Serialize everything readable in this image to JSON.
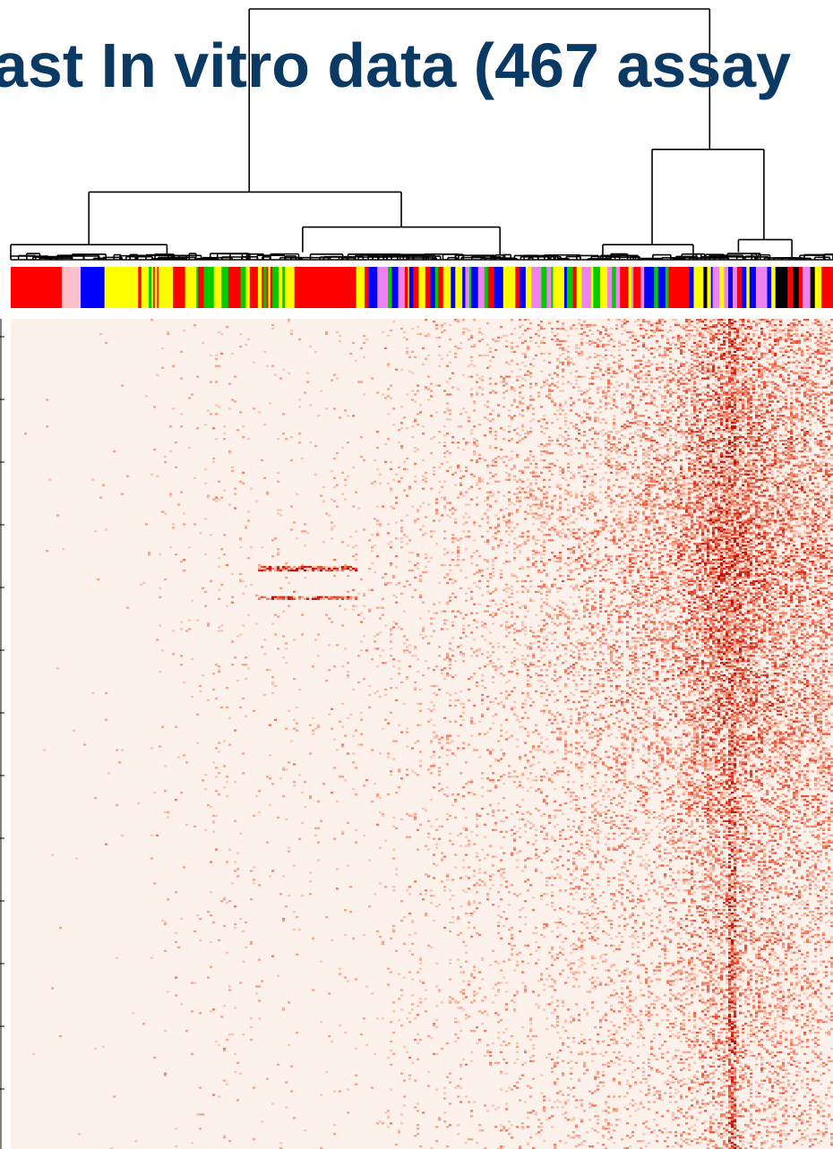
{
  "chart_data": {
    "type": "heatmap",
    "title": "ast In vitro data (467 assay",
    "xlabel": "",
    "ylabel": "",
    "colors": {
      "title": "#0a3a63",
      "dendrogram": "#000000",
      "heat_low": "#fdf1ec",
      "heat_high": "#c41a12",
      "background": "#ffffff"
    },
    "color_bar": {
      "palette": [
        "#ff0000",
        "#ffc0cb",
        "#0000ff",
        "#ffff00",
        "#00cc00",
        "#ee82ee",
        "#000000",
        "#a0522d"
      ],
      "segments": [
        {
          "from": 0.0,
          "to": 0.062,
          "color": 0
        },
        {
          "from": 0.062,
          "to": 0.085,
          "color": 1
        },
        {
          "from": 0.085,
          "to": 0.114,
          "color": 2
        },
        {
          "from": 0.114,
          "to": 0.155,
          "color": 3
        },
        {
          "from": 0.155,
          "to": 0.345,
          "color": "mix:0,3,4"
        },
        {
          "from": 0.345,
          "to": 0.42,
          "color": 0
        },
        {
          "from": 0.42,
          "to": 0.8,
          "color": "mix:0,3,4,5,2"
        },
        {
          "from": 0.8,
          "to": 0.825,
          "color": 0
        },
        {
          "from": 0.825,
          "to": 0.878,
          "color": "mix:5,2,6,3"
        },
        {
          "from": 0.878,
          "to": 0.93,
          "color": "mix:0,3,2,5"
        },
        {
          "from": 0.93,
          "to": 1.0,
          "color": "mix:3,5,0,6"
        }
      ]
    },
    "dendrogram": {
      "leaf_order": "left-to-right",
      "root_merge": [
        0.29,
        0.85
      ],
      "top_clusters": [
        {
          "range": [
            0.0,
            0.625
          ],
          "merge_height": 0.27,
          "children": [
            [
              0.0,
              0.265
            ],
            [
              0.265,
              0.625
            ]
          ]
        },
        {
          "range": [
            0.625,
            1.0
          ],
          "merge_height": 0.44,
          "children": [
            [
              0.625,
              0.84
            ],
            [
              0.84,
              1.0
            ]
          ]
        }
      ]
    },
    "heatmap": {
      "rows": 467,
      "value_range": [
        0,
        1
      ],
      "column_density_profile": [
        {
          "col": 0.0,
          "density": 0.0
        },
        {
          "col": 0.15,
          "density": 0.005
        },
        {
          "col": 0.25,
          "density": 0.03
        },
        {
          "col": 0.33,
          "density": 0.02
        },
        {
          "col": 0.42,
          "density": 0.025
        },
        {
          "col": 0.52,
          "density": 0.08
        },
        {
          "col": 0.6,
          "density": 0.12
        },
        {
          "col": 0.7,
          "density": 0.2
        },
        {
          "col": 0.8,
          "density": 0.3
        },
        {
          "col": 0.87,
          "density": 0.65
        },
        {
          "col": 0.92,
          "density": 0.45
        },
        {
          "col": 1.0,
          "density": 0.35
        }
      ],
      "row_density_profile": [
        {
          "row": 0.0,
          "density": 1.0
        },
        {
          "row": 0.15,
          "density": 1.1
        },
        {
          "row": 0.28,
          "density": 1.35
        },
        {
          "row": 0.45,
          "density": 1.1
        },
        {
          "row": 0.65,
          "density": 0.75
        },
        {
          "row": 0.85,
          "density": 0.6
        },
        {
          "row": 1.0,
          "density": 0.5
        }
      ]
    }
  }
}
